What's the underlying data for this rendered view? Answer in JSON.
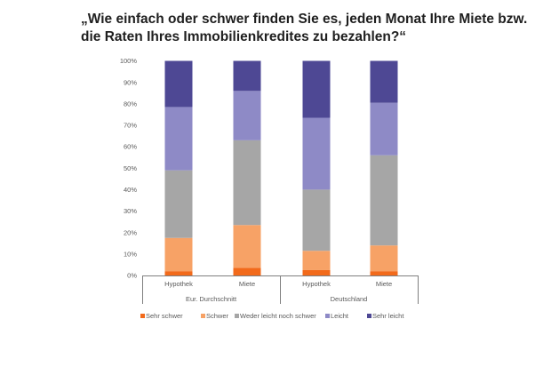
{
  "title_lines": [
    "„Wie einfach oder schwer finden Sie es, jeden Monat Ihre Miete bzw.",
    "die Raten Ihres Immobilienkredites zu bezahlen?“"
  ],
  "chart_data": {
    "type": "bar",
    "stacked": true,
    "percent_scale": true,
    "title": "„Wie einfach oder schwer finden Sie es, jeden Monat Ihre Miete bzw. die Raten Ihres Immobilienkredites zu bezahlen?“",
    "categories": [
      "Hypothek",
      "Miete",
      "Hypothek",
      "Miete"
    ],
    "groups": [
      {
        "label": "Eur. Durchschnitt",
        "categories": [
          "Hypothek",
          "Miete"
        ]
      },
      {
        "label": "Deutschland",
        "categories": [
          "Hypothek",
          "Miete"
        ]
      }
    ],
    "y_ticks": [
      "0%",
      "10%",
      "20%",
      "30%",
      "40%",
      "50%",
      "60%",
      "70%",
      "80%",
      "90%",
      "100%"
    ],
    "ylim": [
      0,
      100
    ],
    "grid": false,
    "legend_position": "bottom",
    "series": [
      {
        "name": "Sehr schwer",
        "color": "#f26a1b",
        "values": [
          2,
          3.5,
          2.5,
          2
        ]
      },
      {
        "name": "Schwer",
        "color": "#f7a266",
        "values": [
          15.5,
          20,
          9,
          12
        ]
      },
      {
        "name": "Weder leicht noch schwer",
        "color": "#a6a6a6",
        "values": [
          31.5,
          39.5,
          28.5,
          42
        ]
      },
      {
        "name": "Leicht",
        "color": "#8e8ac6",
        "values": [
          29.5,
          23,
          33.5,
          24.5
        ]
      },
      {
        "name": "Sehr leicht",
        "color": "#4e4894",
        "values": [
          21.5,
          14,
          26.5,
          19.5
        ]
      }
    ]
  }
}
